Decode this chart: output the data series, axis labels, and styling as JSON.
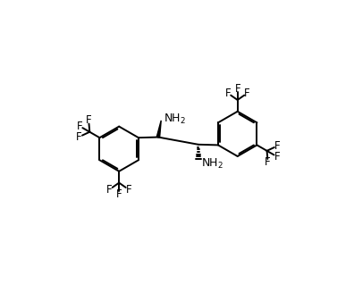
{
  "bg_color": "#ffffff",
  "line_color": "#000000",
  "lw": 1.4,
  "fs": 8.5,
  "figsize": [
    3.96,
    3.18
  ],
  "dpi": 100,
  "xlim": [
    0,
    10
  ],
  "ylim": [
    0,
    8
  ]
}
